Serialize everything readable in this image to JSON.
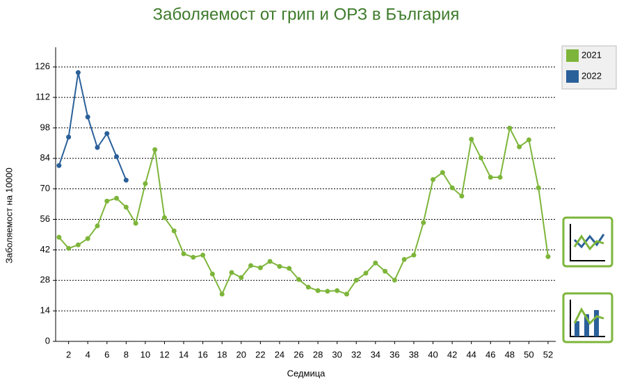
{
  "chart_data": {
    "type": "line",
    "title": "Заболяемост от грип и ОРЗ в България",
    "x_label": "Седмица",
    "y_label": "Заболяемост на 10000",
    "x": [
      1,
      2,
      3,
      4,
      5,
      6,
      7,
      8,
      9,
      10,
      11,
      12,
      13,
      14,
      15,
      16,
      17,
      18,
      19,
      20,
      21,
      22,
      23,
      24,
      25,
      26,
      27,
      28,
      29,
      30,
      31,
      32,
      33,
      34,
      35,
      36,
      37,
      38,
      39,
      40,
      41,
      42,
      43,
      44,
      45,
      46,
      47,
      48,
      49,
      50,
      51,
      52
    ],
    "series": [
      {
        "name": "2021",
        "color": "#7db53a",
        "values": [
          47.8,
          42.7,
          44.3,
          47.2,
          53,
          64.4,
          65.7,
          61.6,
          54.2,
          72.4,
          88,
          56.8,
          50.7,
          40.2,
          38.6,
          39.6,
          30.9,
          21.7,
          31.6,
          29.3,
          34.8,
          33.8,
          36.7,
          34.4,
          33.5,
          28.4,
          24.9,
          23.3,
          23,
          23.3,
          21.7,
          28.1,
          31.3,
          36,
          32.2,
          28.1,
          37.6,
          39.6,
          54.5,
          74.3,
          77.5,
          70.5,
          66.7,
          92.8,
          84.2,
          75.3,
          75.3,
          97.9,
          89.3,
          92.5,
          70.5,
          38.9
        ]
      },
      {
        "name": "2022",
        "color": "#2a6099",
        "values": [
          80.7,
          93.8,
          123.4,
          103,
          89,
          95.4,
          84.8,
          74,
          null,
          null,
          null,
          null,
          null,
          null,
          null,
          null,
          null,
          null,
          null,
          null,
          null,
          null,
          null,
          null,
          null,
          null,
          null,
          null,
          null,
          null,
          null,
          null,
          null,
          null,
          null,
          null,
          null,
          null,
          null,
          null,
          null,
          null,
          null,
          null,
          null,
          null,
          null,
          null,
          null,
          null,
          null,
          null
        ]
      }
    ],
    "xlim": [
      0.65,
      52.8
    ],
    "xticks": [
      2,
      4,
      6,
      8,
      10,
      12,
      14,
      16,
      18,
      20,
      22,
      24,
      26,
      28,
      30,
      32,
      34,
      36,
      38,
      40,
      42,
      44,
      46,
      48,
      50,
      52
    ],
    "ylim": [
      0,
      135
    ],
    "yticks": [
      0,
      14,
      28,
      42,
      56,
      70,
      84,
      98,
      112,
      126
    ],
    "grid": true,
    "legend": "top-right"
  }
}
